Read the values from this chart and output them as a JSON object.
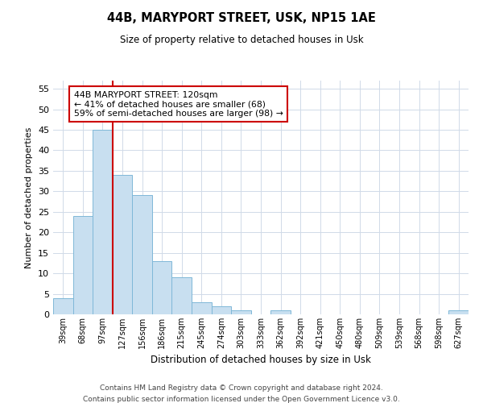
{
  "title": "44B, MARYPORT STREET, USK, NP15 1AE",
  "subtitle": "Size of property relative to detached houses in Usk",
  "xlabel": "Distribution of detached houses by size in Usk",
  "ylabel": "Number of detached properties",
  "bar_labels": [
    "39sqm",
    "68sqm",
    "97sqm",
    "127sqm",
    "156sqm",
    "186sqm",
    "215sqm",
    "245sqm",
    "274sqm",
    "303sqm",
    "333sqm",
    "362sqm",
    "392sqm",
    "421sqm",
    "450sqm",
    "480sqm",
    "509sqm",
    "539sqm",
    "568sqm",
    "598sqm",
    "627sqm"
  ],
  "bar_values": [
    4,
    24,
    45,
    34,
    29,
    13,
    9,
    3,
    2,
    1,
    0,
    1,
    0,
    0,
    0,
    0,
    0,
    0,
    0,
    0,
    1
  ],
  "bar_color": "#c8dff0",
  "bar_edge_color": "#7fb8d8",
  "vline_x_bar_index": 2.5,
  "annotation_line1": "44B MARYPORT STREET: 120sqm",
  "annotation_line2": "← 41% of detached houses are smaller (68)",
  "annotation_line3": "59% of semi-detached houses are larger (98) →",
  "annotation_box_facecolor": "#ffffff",
  "annotation_box_edgecolor": "#cc0000",
  "vline_color": "#cc0000",
  "ylim": [
    0,
    57
  ],
  "yticks": [
    0,
    5,
    10,
    15,
    20,
    25,
    30,
    35,
    40,
    45,
    50,
    55
  ],
  "footer_line1": "Contains HM Land Registry data © Crown copyright and database right 2024.",
  "footer_line2": "Contains public sector information licensed under the Open Government Licence v3.0.",
  "bg_color": "#ffffff",
  "grid_color": "#d0dae8"
}
